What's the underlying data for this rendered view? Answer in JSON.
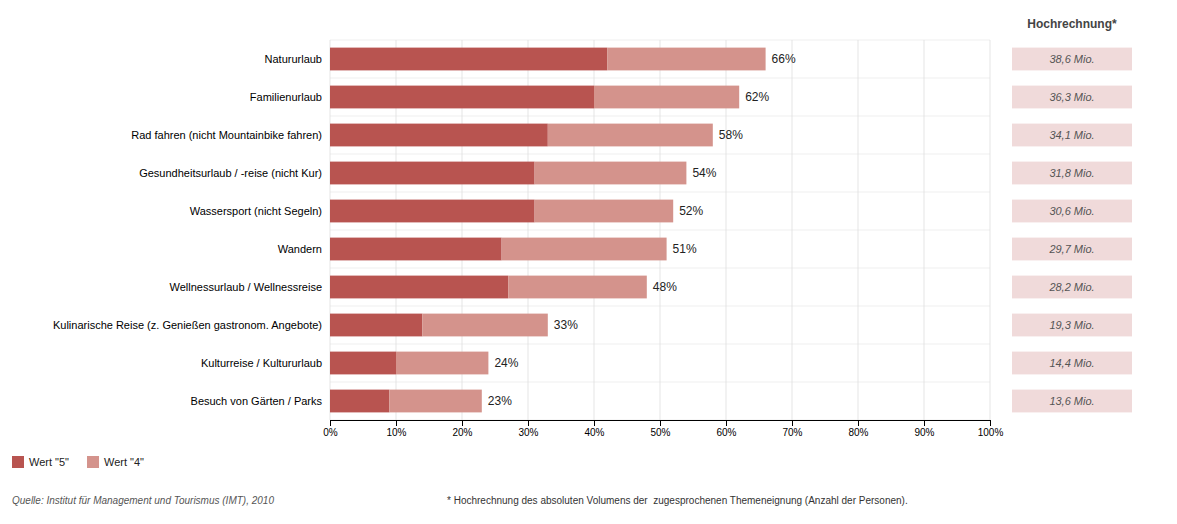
{
  "chart_data": {
    "type": "bar",
    "orientation": "horizontal",
    "stacked": true,
    "categories": [
      "Natururlaub",
      "Familienurlaub",
      "Rad fahren (nicht Mountainbike fahren)",
      "Gesundheitsurlaub / -reise (nicht Kur)",
      "Wassersport (nicht Segeln)",
      "Wandern",
      "Wellnessurlaub / Wellnessreise",
      "Kulinarische Reise (z. Genießen gastronom. Angebote)",
      "Kulturreise / Kultururlaub",
      "Besuch von Gärten / Parks"
    ],
    "series": [
      {
        "name": "Wert \"5\"",
        "color": "#b85450",
        "values": [
          42,
          40,
          33,
          31,
          31,
          26,
          27,
          14,
          10,
          9
        ]
      },
      {
        "name": "Wert \"4\"",
        "color": "#d4938c",
        "values": [
          24,
          22,
          25,
          23,
          21,
          25,
          21,
          19,
          14,
          14
        ]
      }
    ],
    "totals": [
      66,
      62,
      58,
      54,
      52,
      51,
      48,
      33,
      24,
      23
    ],
    "total_labels": [
      "66%",
      "62%",
      "58%",
      "54%",
      "52%",
      "51%",
      "48%",
      "33%",
      "24%",
      "23%"
    ],
    "xlim": [
      0,
      100
    ],
    "xticks": [
      {
        "value": 0,
        "label": "0%"
      },
      {
        "value": 10,
        "label": "10%"
      },
      {
        "value": 20,
        "label": "20%"
      },
      {
        "value": 30,
        "label": "30%"
      },
      {
        "value": 40,
        "label": "40%"
      },
      {
        "value": 50,
        "label": "50%"
      },
      {
        "value": 60,
        "label": "60%"
      },
      {
        "value": 70,
        "label": "70%"
      },
      {
        "value": 80,
        "label": "80%"
      },
      {
        "value": 90,
        "label": "90%"
      },
      {
        "value": 100,
        "label": "100%"
      }
    ],
    "grid": true,
    "legend": "bottom",
    "hochrechnung_title": "Hochrechnung*",
    "hochrechnung": [
      "38,6 Mio.",
      "36,3 Mio.",
      "34,1 Mio.",
      "31,8 Mio.",
      "30,6 Mio.",
      "29,7 Mio.",
      "28,2 Mio.",
      "19,3 Mio.",
      "14,4 Mio.",
      "13,6 Mio."
    ],
    "hochrechnung_color": "#f0dada",
    "source": "Quelle: Institut für Management und Tourismus (IMT), 2010",
    "note": "* Hochrechnung des absoluten Volumens der  zugesprochenen Themeneignung (Anzahl der Personen)."
  }
}
